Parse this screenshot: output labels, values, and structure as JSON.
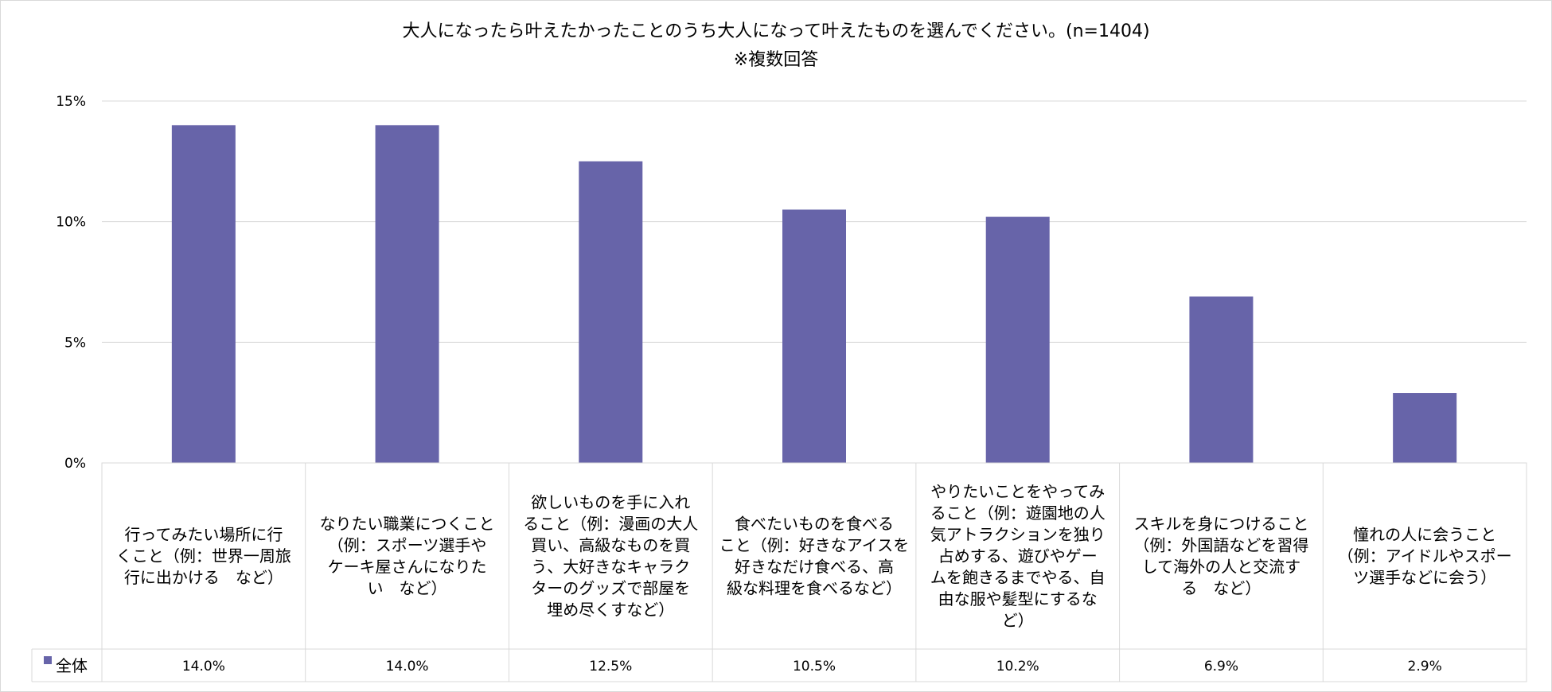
{
  "chart_data": {
    "type": "bar",
    "title": "大人になったら叶えたかったことのうち大人になって叶えたものを選んでください。(n=1404)",
    "subtitle": "※複数回答",
    "categories": [
      [
        "行ってみたい場所に行",
        "くこと（例：世界一周旅",
        "行に出かける　など）"
      ],
      [
        "なりたい職業につくこと",
        "（例：スポーツ選手や",
        "ケーキ屋さんになりた",
        "い　など）"
      ],
      [
        "欲しいものを手に入れ",
        "ること（例：漫画の大人",
        "買い、高級なものを買",
        "う、大好きなキャラク",
        "ターのグッズで部屋を",
        "埋め尽くすなど）"
      ],
      [
        "食べたいものを食べる",
        "こと（例：好きなアイスを",
        "好きなだけ食べる、高",
        "級な料理を食べるなど）"
      ],
      [
        "やりたいことをやってみ",
        "ること（例：遊園地の人",
        "気アトラクションを独り",
        "占めする、遊びやゲー",
        "ムを飽きるまでやる、自",
        "由な服や髪型にするな",
        "ど）"
      ],
      [
        "スキルを身につけること",
        "（例：外国語などを習得",
        "して海外の人と交流す",
        "る　など）"
      ],
      [
        "憧れの人に会うこと",
        "（例：アイドルやスポー",
        "ツ選手などに会う）"
      ]
    ],
    "series": [
      {
        "name": "全体",
        "color": "#6764a9",
        "values": [
          14.0,
          14.0,
          12.5,
          10.5,
          10.2,
          6.9,
          2.9
        ],
        "labels": [
          "14.0%",
          "14.0%",
          "12.5%",
          "10.5%",
          "10.2%",
          "6.9%",
          "2.9%"
        ]
      }
    ],
    "ylim": [
      0,
      15
    ],
    "yticks": [
      0,
      5,
      10,
      15
    ],
    "ytick_labels": [
      "0%",
      "5%",
      "10%",
      "15%"
    ],
    "grid": true,
    "data_table": true
  }
}
